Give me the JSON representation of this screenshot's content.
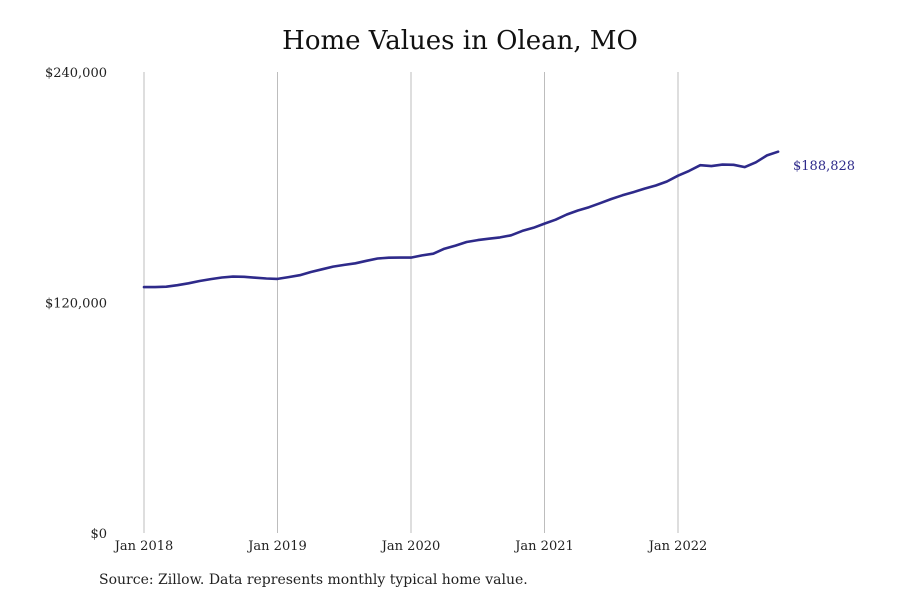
{
  "chart_data": {
    "type": "line",
    "title": "Home Values in Olean, MO",
    "xlabel": "",
    "ylabel": "",
    "source_note": "Source: Zillow. Data represents monthly typical home value.",
    "x_ticks": [
      "Jan 2018",
      "Jan 2019",
      "Jan 2020",
      "Jan 2021",
      "Jan 2022"
    ],
    "y_ticks": [
      "$0",
      "$120,000",
      "$240,000"
    ],
    "ylim": [
      0,
      240000
    ],
    "xlim": [
      "2018-01",
      "2022-10"
    ],
    "grid": "vertical",
    "line_color": "#2e2a8a",
    "grid_color": "#bdbdbd",
    "end_label": "$188,828",
    "series": [
      {
        "x": [
          "2018-01",
          "2018-02",
          "2018-03",
          "2018-04",
          "2018-05",
          "2018-06",
          "2018-07",
          "2018-08",
          "2018-09",
          "2018-10",
          "2018-11",
          "2018-12",
          "2019-01",
          "2019-02",
          "2019-03",
          "2019-04",
          "2019-05",
          "2019-06",
          "2019-07",
          "2019-08",
          "2019-09",
          "2019-10",
          "2019-11",
          "2019-12",
          "2020-01",
          "2020-02",
          "2020-03",
          "2020-04",
          "2020-05",
          "2020-06",
          "2020-07",
          "2020-08",
          "2020-09",
          "2020-10",
          "2020-11",
          "2020-12",
          "2021-01",
          "2021-02",
          "2021-03",
          "2021-04",
          "2021-05",
          "2021-06",
          "2021-07",
          "2021-08",
          "2021-09",
          "2021-10",
          "2021-11",
          "2021-12",
          "2022-01",
          "2022-02",
          "2022-03",
          "2022-04",
          "2022-05",
          "2022-06",
          "2022-07",
          "2022-08",
          "2022-09",
          "2022-10"
        ],
        "values": [
          128000,
          128000,
          128200,
          129000,
          130000,
          131200,
          132200,
          133000,
          133500,
          133400,
          132900,
          132500,
          132300,
          133200,
          134200,
          135900,
          137300,
          138700,
          139600,
          140400,
          141700,
          142900,
          143300,
          143400,
          143400,
          144500,
          145400,
          148000,
          149600,
          151500,
          152500,
          153200,
          153900,
          155000,
          157300,
          158900,
          161100,
          163100,
          165800,
          167900,
          169600,
          171700,
          173900,
          175800,
          177500,
          179300,
          180900,
          183000,
          186000,
          188500,
          191500,
          191000,
          191800,
          191700,
          190500,
          193000,
          196600,
          188828
        ]
      }
    ]
  }
}
